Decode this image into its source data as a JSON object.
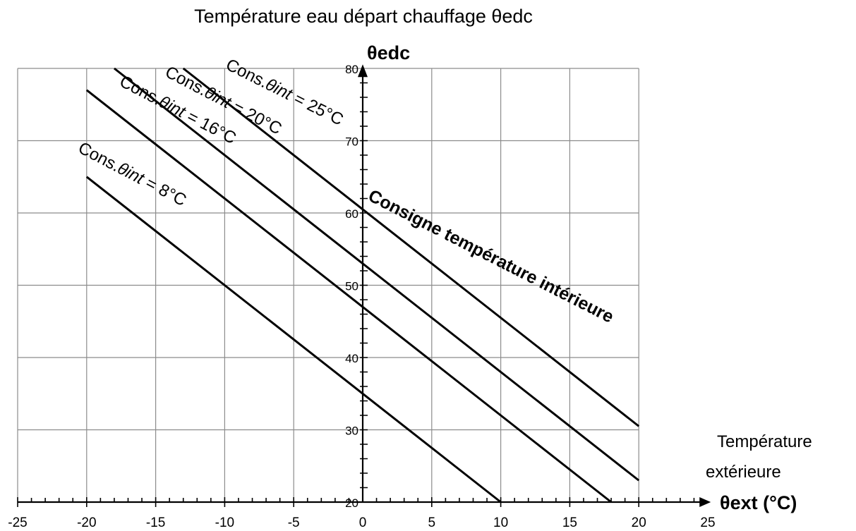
{
  "title": "Température eau départ chauffage θedc",
  "chart_data": {
    "type": "line",
    "title": "Température eau départ chauffage θedc",
    "ylabel": "θedc",
    "xlabel": "θext (°C)",
    "x_side_label": [
      "Température",
      "extérieure"
    ],
    "annotation": "Consigne température intérieure",
    "xlim": [
      -25,
      25
    ],
    "ylim": [
      20,
      80
    ],
    "x_ticks": [
      "-25",
      "-20",
      "-15",
      "-10",
      "-5",
      "0",
      "5",
      "10",
      "15",
      "20",
      "25"
    ],
    "y_ticks": [
      "20",
      "30",
      "40",
      "50",
      "60",
      "70",
      "80"
    ],
    "grid": true,
    "series": [
      {
        "name": "Cons.θint = 25°C",
        "label_parts": {
          "prefix": "Cons.",
          "theta": "θint",
          "suffix": " = 25°C"
        },
        "x": [
          -13,
          20
        ],
        "y": [
          80,
          30.5
        ]
      },
      {
        "name": "Cons.θint = 20°C",
        "label_parts": {
          "prefix": "Cons.",
          "theta": "θint",
          "suffix": " = 20°C"
        },
        "x": [
          -18,
          20
        ],
        "y": [
          80,
          23
        ]
      },
      {
        "name": "Cons.θint = 16°C",
        "label_parts": {
          "prefix": "Cons.",
          "theta": "θint",
          "suffix": " = 16°C"
        },
        "x": [
          -20,
          18
        ],
        "y": [
          77,
          20
        ]
      },
      {
        "name": "Cons.θint = 8°C",
        "label_parts": {
          "prefix": "Cons.",
          "theta": "θint",
          "suffix": " = 8°C"
        },
        "x": [
          -20,
          10
        ],
        "y": [
          65,
          20
        ]
      }
    ]
  }
}
